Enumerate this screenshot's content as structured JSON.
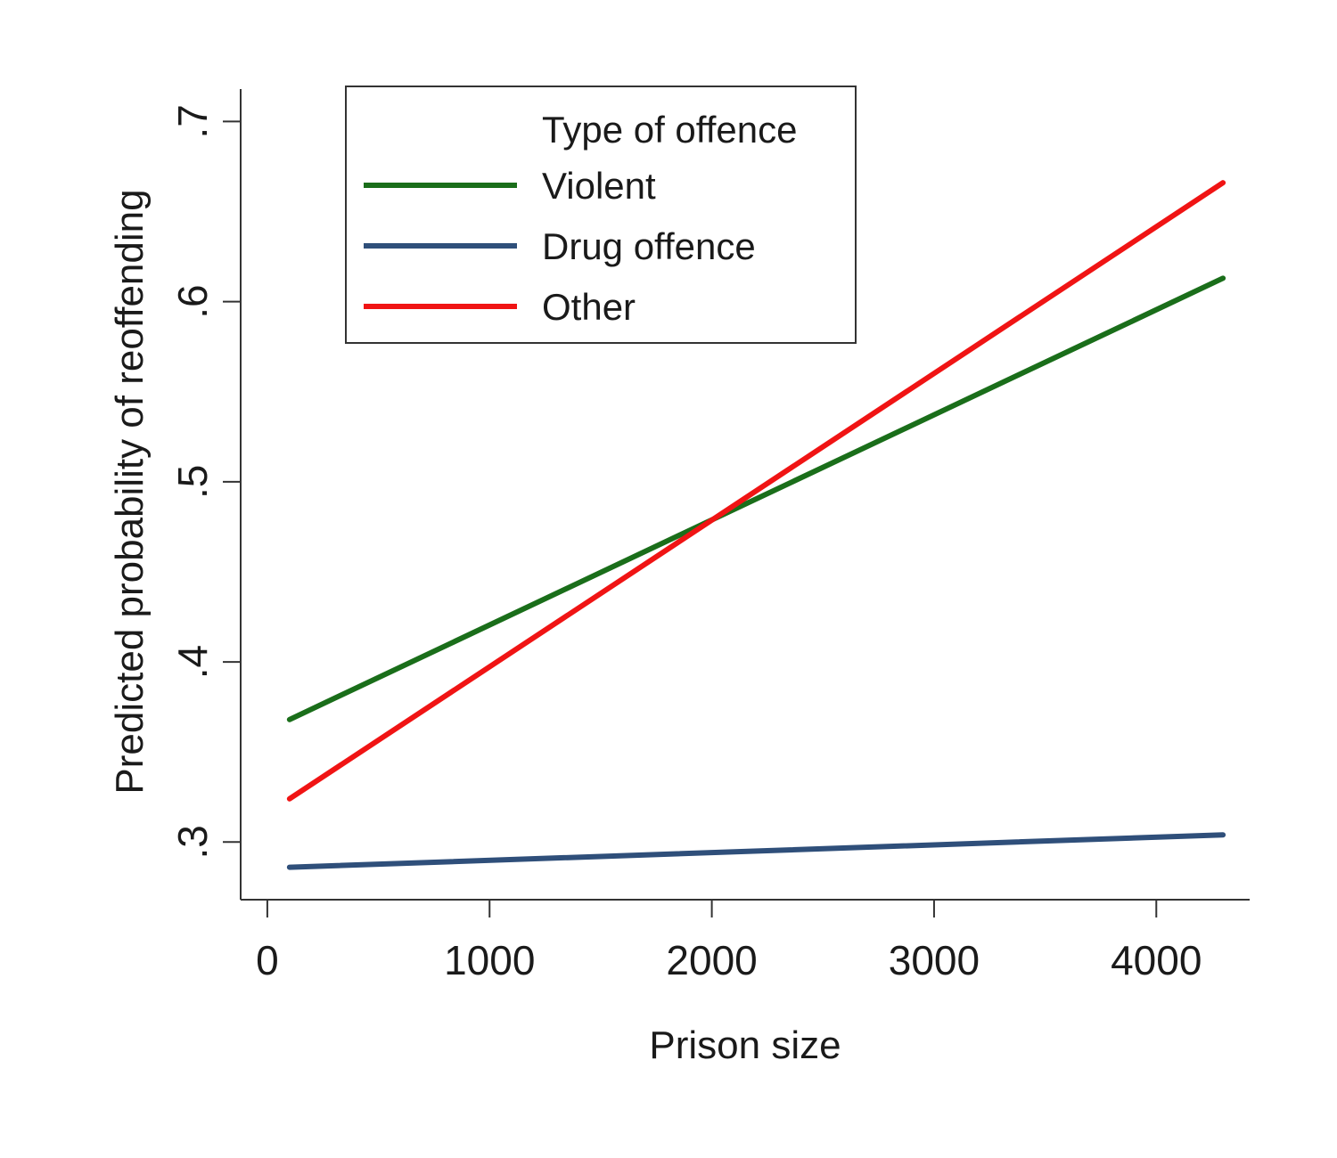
{
  "chart_data": {
    "type": "line",
    "title": "",
    "xlabel": "Prison size",
    "ylabel": "Predicted probability of reoffending",
    "xlim": [
      -120,
      4420
    ],
    "ylim": [
      0.268,
      0.718
    ],
    "xticks": [
      0,
      1000,
      2000,
      3000,
      4000
    ],
    "xtick_labels": [
      "0",
      "1000",
      "2000",
      "3000",
      "4000"
    ],
    "yticks": [
      0.3,
      0.4,
      0.5,
      0.6,
      0.7
    ],
    "ytick_labels": [
      ".3",
      ".4",
      ".5",
      ".6",
      ".7"
    ],
    "grid": false,
    "legend": {
      "title": "Type of offence",
      "placement": "top-left"
    },
    "x": [
      100,
      4300
    ],
    "series": [
      {
        "name": "Violent",
        "color": "#1a6e1a",
        "values": [
          0.368,
          0.613
        ]
      },
      {
        "name": "Drug offence",
        "color": "#2f4f7a",
        "values": [
          0.286,
          0.304
        ]
      },
      {
        "name": "Other",
        "color": "#f01414",
        "values": [
          0.324,
          0.666
        ]
      }
    ]
  }
}
